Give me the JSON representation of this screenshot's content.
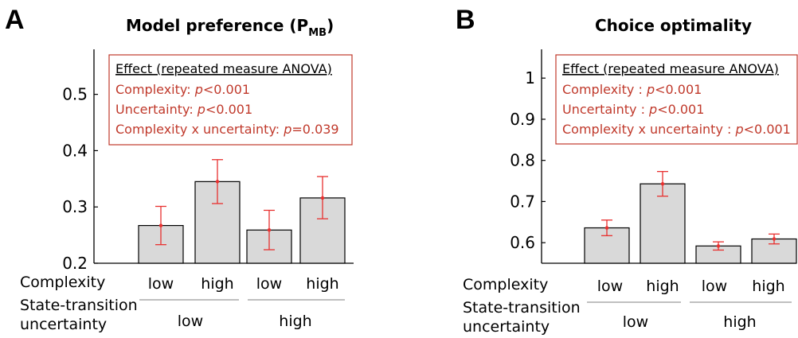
{
  "panels": [
    {
      "letter": "A",
      "title_main": "Model preference (P",
      "title_sub": "MB",
      "title_close": ")",
      "effects": {
        "heading": "Effect (repeated measure ANOVA)",
        "lines": [
          {
            "label": "Complexity: ",
            "p": "p",
            "value": "<0.001"
          },
          {
            "label": "Uncertainty: ",
            "p": "p",
            "value": "<0.001"
          },
          {
            "label": "Complexity x uncertainty: ",
            "p": "p",
            "value": "=0.039"
          }
        ]
      },
      "row1_label": "Complexity",
      "row2_label_line1": "State-transition",
      "row2_label_line2": "uncertainty",
      "complexity_labels": [
        "low",
        "high",
        "low",
        "high"
      ],
      "uncertainty_labels": [
        "low",
        "high"
      ]
    },
    {
      "letter": "B",
      "title_main": "Choice optimality",
      "title_sub": "",
      "title_close": "",
      "effects": {
        "heading": "Effect (repeated measure ANOVA)",
        "lines": [
          {
            "label": "Complexity : ",
            "p": "p",
            "value": "<0.001"
          },
          {
            "label": "Uncertainty : ",
            "p": "p",
            "value": "<0.001"
          },
          {
            "label": "Complexity x uncertainty : ",
            "p": "p",
            "value": "<0.001"
          }
        ]
      },
      "row1_label": "Complexity",
      "row2_label_line1": "State-transition",
      "row2_label_line2": "uncertainty",
      "complexity_labels": [
        "low",
        "high",
        "low",
        "high"
      ],
      "uncertainty_labels": [
        "low",
        "high"
      ]
    }
  ],
  "chart_data": [
    {
      "type": "bar",
      "title": "Model preference (PMB)",
      "categories": [
        "low/low",
        "high/low",
        "low/high",
        "high/high"
      ],
      "values": [
        0.267,
        0.345,
        0.259,
        0.316
      ],
      "error_low": [
        0.233,
        0.306,
        0.224,
        0.279
      ],
      "error_high": [
        0.301,
        0.384,
        0.294,
        0.354
      ],
      "ylim": [
        0.2,
        0.58
      ],
      "yticks": [
        0.2,
        0.3,
        0.4,
        0.5
      ],
      "ytick_labels": [
        "0.2",
        "0.3",
        "0.4",
        "0.5"
      ],
      "bar_color": "#d9d9d9",
      "error_color": "#e8302f"
    },
    {
      "type": "bar",
      "title": "Choice optimality",
      "categories": [
        "low/low",
        "high/low",
        "low/high",
        "high/high"
      ],
      "values": [
        0.636,
        0.743,
        0.592,
        0.609
      ],
      "error_low": [
        0.617,
        0.713,
        0.582,
        0.597
      ],
      "error_high": [
        0.655,
        0.773,
        0.602,
        0.621
      ],
      "ylim": [
        0.55,
        1.07
      ],
      "yticks": [
        0.6,
        0.7,
        0.8,
        0.9,
        1.0
      ],
      "ytick_labels": [
        "0.6",
        "0.7",
        "0.8",
        "0.9",
        "1"
      ],
      "bar_color": "#d9d9d9",
      "error_color": "#e8302f"
    }
  ]
}
